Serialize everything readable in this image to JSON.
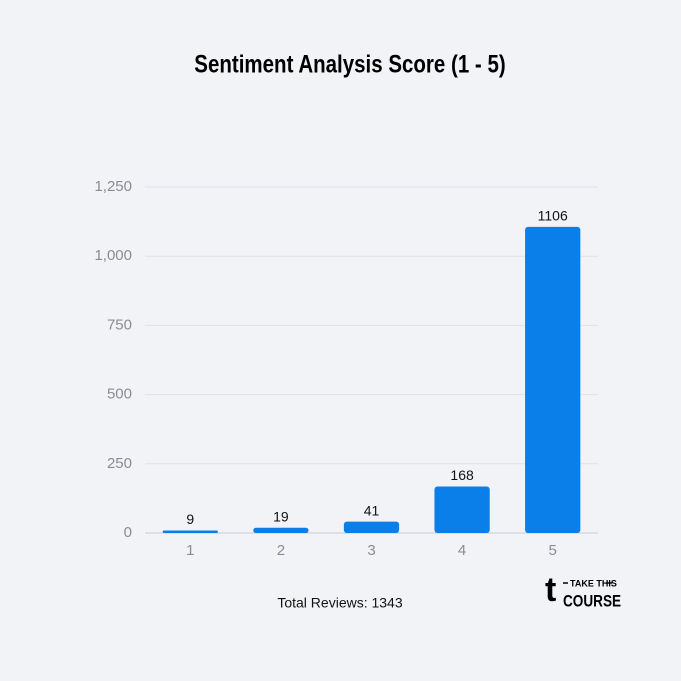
{
  "chart_data": {
    "type": "bar",
    "title": "Sentiment Analysis Score (1 - 5)",
    "categories": [
      "1",
      "2",
      "3",
      "4",
      "5"
    ],
    "values": [
      9,
      19,
      41,
      168,
      1106
    ],
    "color": "#0b7fe9",
    "ylim": [
      0,
      1250
    ],
    "yticks": [
      0,
      250,
      500,
      750,
      {
        "value": 1000,
        "label": "1,000"
      },
      {
        "value": 1250,
        "label": "1,250"
      }
    ],
    "grid": true,
    "footer": "Total Reviews: 1343"
  },
  "logo": {
    "mark": "t",
    "top": "TAKE THIS",
    "bottom": "COURSE"
  }
}
